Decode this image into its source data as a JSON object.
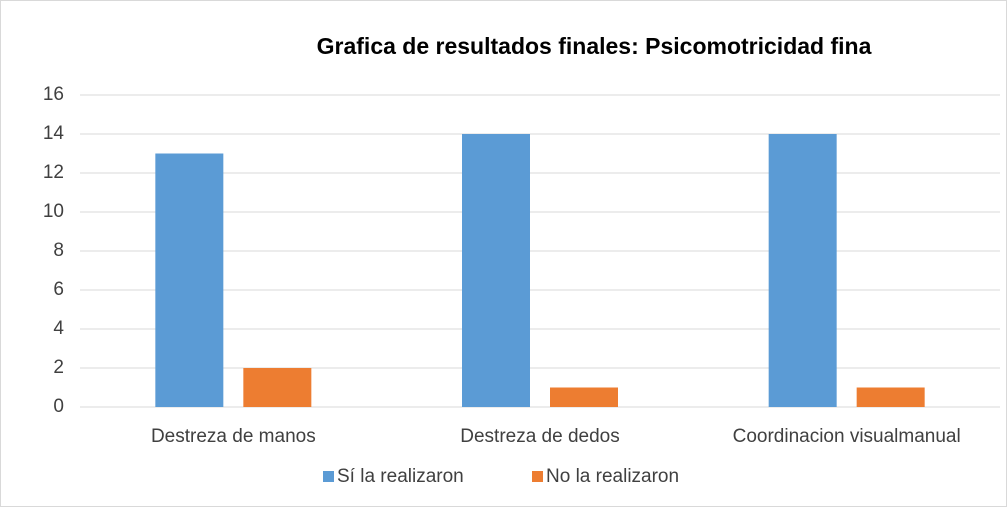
{
  "chart_data": {
    "type": "bar",
    "title": "Grafica de resultados finales: Psicomotricidad fina",
    "categories": [
      "Destreza de manos",
      "Destreza de dedos",
      "Coordinacion visualmanual"
    ],
    "series": [
      {
        "name": "Sí la realizaron",
        "color": "#5b9bd5",
        "values": [
          13,
          14,
          14
        ]
      },
      {
        "name": "No la realizaron",
        "color": "#ed7d31",
        "values": [
          2,
          1,
          1
        ]
      }
    ],
    "ylim": [
      0,
      16
    ],
    "yticks": [
      0,
      2,
      4,
      6,
      8,
      10,
      12,
      14,
      16
    ],
    "grid": true,
    "legend": "bottom"
  }
}
